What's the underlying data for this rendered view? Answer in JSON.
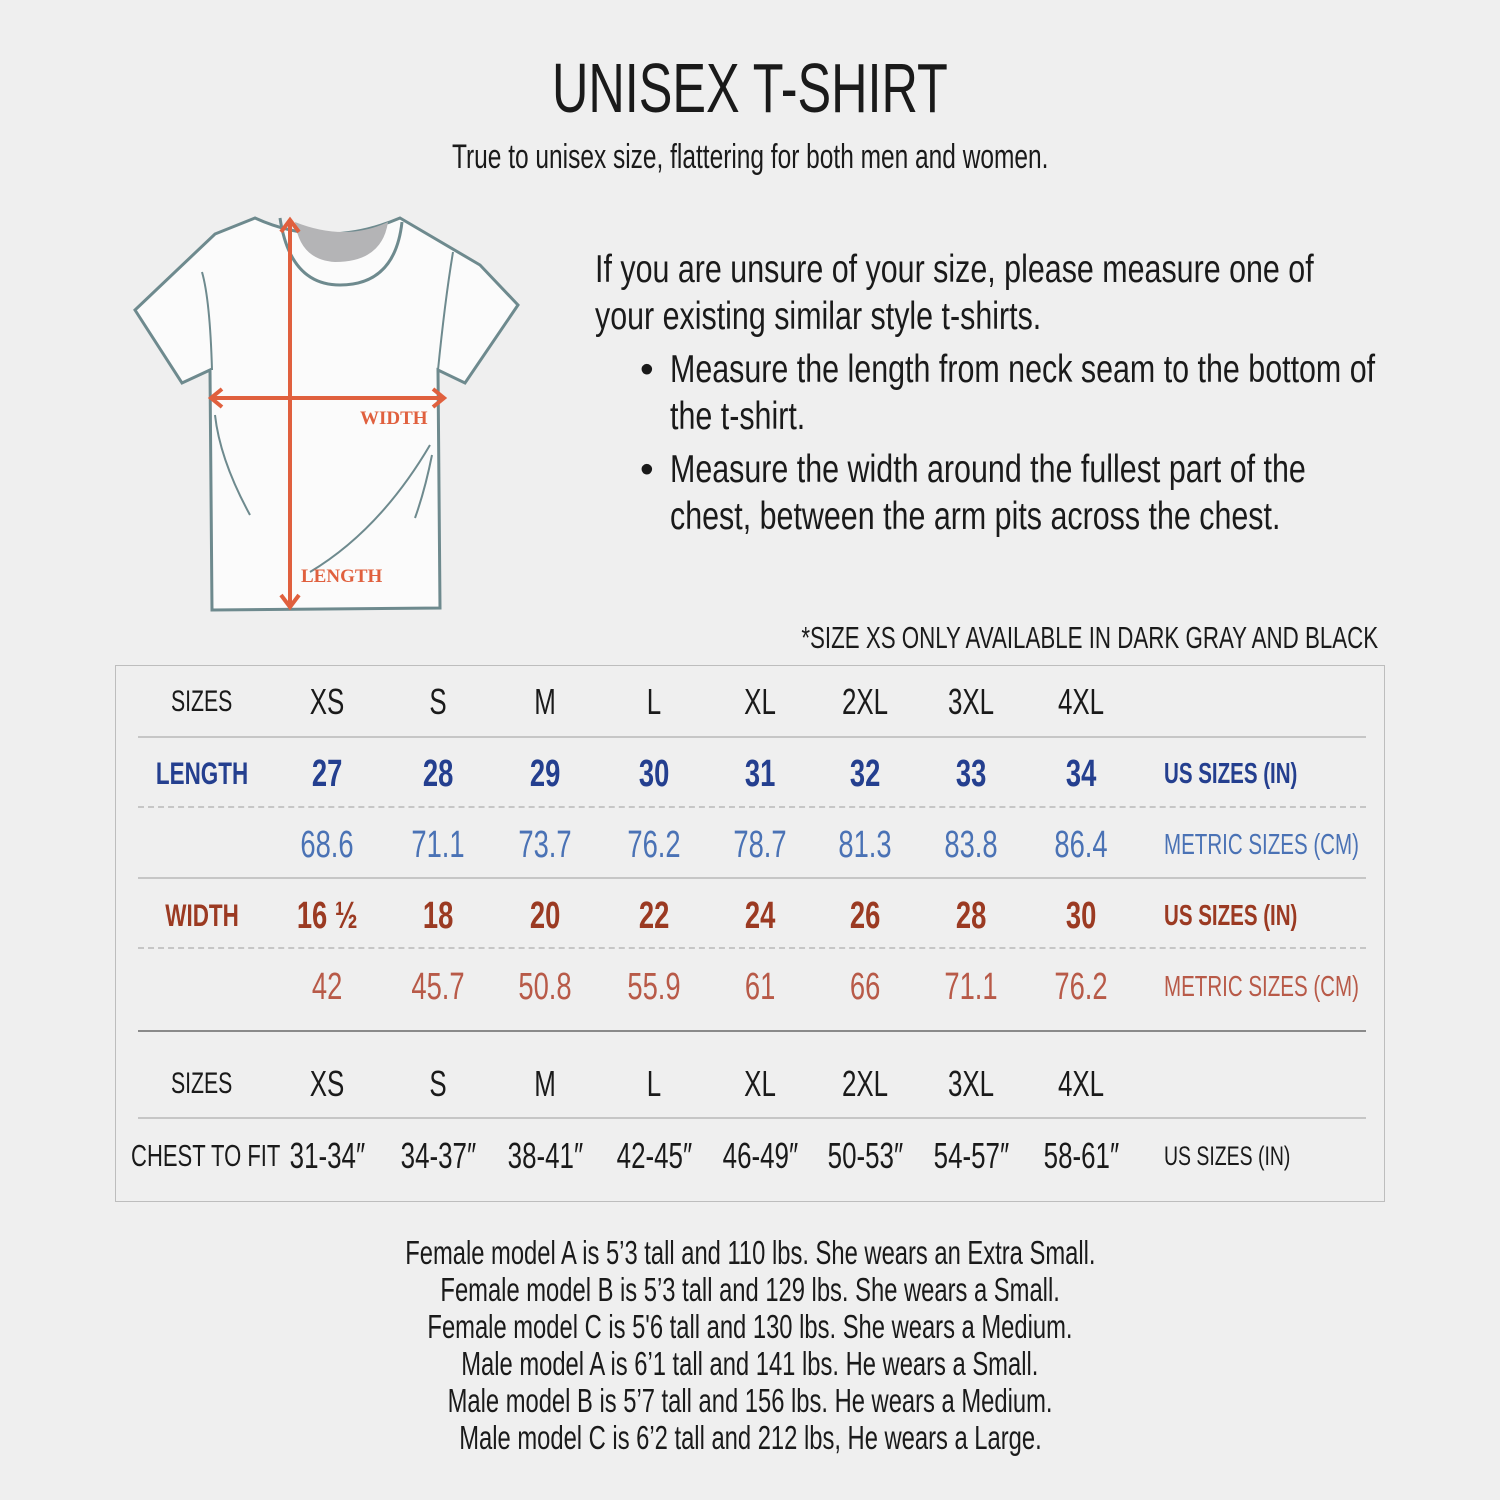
{
  "title": "UNISEX T-SHIRT",
  "subtitle": "True to unisex size, flattering for both men and women.",
  "diagram": {
    "width_label": "WIDTH",
    "length_label": "LENGTH",
    "arrow_color": "#e0603e",
    "outline_color": "#6e8a8e"
  },
  "instructions": {
    "intro": "If you are unsure of your size, please measure one of your existing similar style t-shirts.",
    "bullets": [
      "Measure the length from neck seam to the bottom of the t-shirt.",
      "Measure the width around the fullest part of the chest, between the arm pits across the chest."
    ]
  },
  "note": "*SIZE XS ONLY AVAILABLE IN DARK GRAY AND BLACK",
  "colors": {
    "length_us": "#243f8f",
    "length_metric": "#4a72b5",
    "width_us": "#9b3a22",
    "width_metric": "#b85a48",
    "background": "#efefef"
  },
  "table": {
    "sizes_label": "SIZES",
    "sizes": [
      "XS",
      "S",
      "M",
      "L",
      "XL",
      "2XL",
      "3XL",
      "4XL"
    ],
    "length": {
      "label": "LENGTH",
      "us": [
        "27",
        "28",
        "29",
        "30",
        "31",
        "32",
        "33",
        "34"
      ],
      "us_unit": "US SIZES (IN)",
      "metric": [
        "68.6",
        "71.1",
        "73.7",
        "76.2",
        "78.7",
        "81.3",
        "83.8",
        "86.4"
      ],
      "metric_unit": "METRIC SIZES (CM)"
    },
    "width": {
      "label": "WIDTH",
      "us": [
        "16 ½",
        "18",
        "20",
        "22",
        "24",
        "26",
        "28",
        "30"
      ],
      "us_unit": "US SIZES (IN)",
      "metric": [
        "42",
        "45.7",
        "50.8",
        "55.9",
        "61",
        "66",
        "71.1",
        "76.2"
      ],
      "metric_unit": "METRIC SIZES (CM)"
    },
    "chest": {
      "label": "CHEST TO FIT",
      "values": [
        "31-34″",
        "34-37″",
        "38-41″",
        "42-45″",
        "46-49″",
        "50-53″",
        "54-57″",
        "58-61″"
      ],
      "unit": "US SIZES (IN)"
    }
  },
  "models": [
    "Female model A is 5’3 tall and 110 lbs. She wears an Extra Small.",
    "Female model B is 5’3 tall and 129 lbs. She wears a Small.",
    "Female model C is 5'6 tall and 130 lbs. She wears a Medium.",
    "Male model A is 6’1 tall and 141 lbs. He wears a Small.",
    "Male model B is 5’7 tall and 156 lbs. He wears a Medium.",
    "Male model C is 6’2 tall and 212 lbs, He wears a Large."
  ]
}
